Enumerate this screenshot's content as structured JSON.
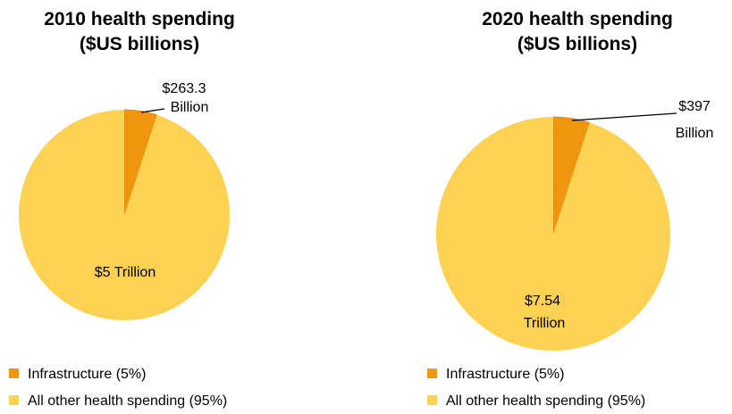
{
  "chart_data": [
    {
      "type": "pie",
      "title_line1": "2010 health spending",
      "title_line2": "($US billions)",
      "slices": [
        {
          "name": "Infrastructure (5%)",
          "value": 5,
          "color": "#f0960e",
          "label_lines": [
            "$263.3",
            "Billion"
          ]
        },
        {
          "name": "All other health spending (95%)",
          "value": 95,
          "color": "#fdd253",
          "label_lines": [
            "$5 Trillion"
          ]
        }
      ],
      "legend": [
        "Infrastructure (5%)",
        "All other health spending (95%)"
      ],
      "legend_position": "bottom-left"
    },
    {
      "type": "pie",
      "title_line1": "2020 health spending",
      "title_line2": "($US billions)",
      "slices": [
        {
          "name": "Infrastructure (5%)",
          "value": 5,
          "color": "#f0960e",
          "label_lines": [
            "$397",
            "Billion"
          ]
        },
        {
          "name": "All other health spending (95%)",
          "value": 95,
          "color": "#fdd253",
          "label_lines": [
            "$7.54",
            "Trillion"
          ]
        }
      ],
      "legend": [
        "Infrastructure (5%)",
        "All other health spending (95%)"
      ],
      "legend_position": "bottom-left"
    }
  ]
}
